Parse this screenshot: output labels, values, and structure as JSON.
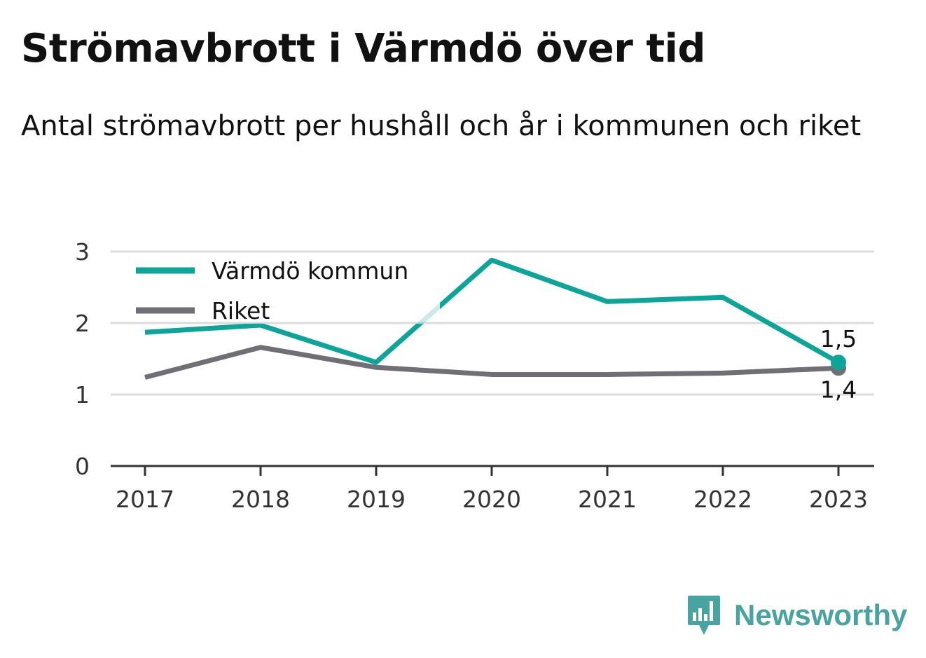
{
  "title": "Strömavbrott i Värmdö över tid",
  "subtitle": "Antal strömavbrott per hushåll och år i kommunen och riket",
  "brand": {
    "name": "Newsworthy",
    "icon": "bar-chart-speech-bubble-icon",
    "color": "#49a3a0"
  },
  "chart_data": {
    "type": "line",
    "x": [
      "2017",
      "2018",
      "2019",
      "2020",
      "2021",
      "2022",
      "2023"
    ],
    "ylim": [
      0,
      3
    ],
    "yticks": [
      "0",
      "1",
      "2",
      "3"
    ],
    "grid": true,
    "legend_position": "top-left",
    "series": [
      {
        "name": "Värmdö kommun",
        "color": "#0da59a",
        "values": [
          1.87,
          1.97,
          1.45,
          2.88,
          2.3,
          2.36,
          1.45
        ],
        "end_label": "1,5"
      },
      {
        "name": "Riket",
        "color": "#706f76",
        "values": [
          1.24,
          1.66,
          1.38,
          1.28,
          1.28,
          1.3,
          1.37
        ],
        "end_label": "1,4"
      }
    ]
  }
}
